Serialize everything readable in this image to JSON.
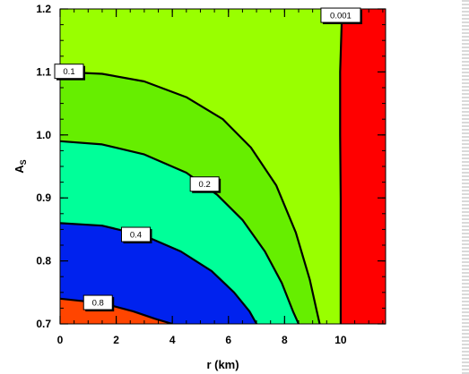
{
  "chart_data": {
    "type": "contour",
    "xlabel": "r (km)",
    "ylabel": {
      "main": "A",
      "sub": "S"
    },
    "xlim": [
      0,
      11.6
    ],
    "ylim": [
      0.7,
      1.2
    ],
    "xticks": [
      {
        "value": 0,
        "label": "0"
      },
      {
        "value": 2,
        "label": "2"
      },
      {
        "value": 4,
        "label": "4"
      },
      {
        "value": 6,
        "label": "6"
      },
      {
        "value": 8,
        "label": "8"
      },
      {
        "value": 10,
        "label": "10"
      }
    ],
    "yticks": [
      {
        "value": 0.7,
        "label": "0.7"
      },
      {
        "value": 0.8,
        "label": "0.8"
      },
      {
        "value": 0.9,
        "label": "0.9"
      },
      {
        "value": 1.0,
        "label": "1.0"
      },
      {
        "value": 1.1,
        "label": "1.1"
      },
      {
        "value": 1.2,
        "label": "1.2"
      }
    ],
    "fill_colors": {
      "above_0.8": "#ff4500",
      "0.4_to_0.8": "#0022ee",
      "0.2_to_0.4": "#00ff99",
      "0.1_to_0.2": "#66ee00",
      "0.001_to_0.1": "#99ff00",
      "below_0.001": "#ff0000"
    },
    "contours": [
      {
        "level": "0.8",
        "points": [
          [
            0,
            0.74
          ],
          [
            1.5,
            0.733
          ],
          [
            2.6,
            0.72
          ],
          [
            3.4,
            0.708
          ],
          [
            4.0,
            0.7
          ]
        ],
        "label_at": [
          1.35,
          0.734
        ]
      },
      {
        "level": "0.4",
        "points": [
          [
            0,
            0.86
          ],
          [
            1.5,
            0.856
          ],
          [
            3.0,
            0.84
          ],
          [
            4.3,
            0.815
          ],
          [
            5.4,
            0.784
          ],
          [
            6.2,
            0.75
          ],
          [
            6.75,
            0.72
          ],
          [
            7.0,
            0.7
          ]
        ],
        "label_at": [
          2.7,
          0.842
        ]
      },
      {
        "level": "0.2",
        "points": [
          [
            0,
            0.99
          ],
          [
            1.5,
            0.985
          ],
          [
            3.0,
            0.969
          ],
          [
            4.5,
            0.94
          ],
          [
            5.6,
            0.905
          ],
          [
            6.5,
            0.865
          ],
          [
            7.3,
            0.815
          ],
          [
            7.9,
            0.765
          ],
          [
            8.3,
            0.72
          ],
          [
            8.5,
            0.7
          ]
        ],
        "label_at": [
          5.15,
          0.922
        ]
      },
      {
        "level": "0.1",
        "points": [
          [
            0,
            1.1
          ],
          [
            1.5,
            1.097
          ],
          [
            3.0,
            1.085
          ],
          [
            4.5,
            1.06
          ],
          [
            5.8,
            1.025
          ],
          [
            6.8,
            0.98
          ],
          [
            7.7,
            0.92
          ],
          [
            8.4,
            0.845
          ],
          [
            8.9,
            0.77
          ],
          [
            9.15,
            0.72
          ],
          [
            9.25,
            0.7
          ]
        ],
        "label_at": [
          0.2,
          1.101
        ]
      },
      {
        "level": "0.001",
        "points": [
          [
            10.05,
            1.2
          ],
          [
            9.98,
            1.1
          ],
          [
            9.98,
            1.0
          ],
          [
            10.0,
            0.9
          ],
          [
            10.0,
            0.8
          ],
          [
            10.0,
            0.7
          ]
        ],
        "label_at": [
          10.0,
          1.19
        ]
      }
    ],
    "grid": false,
    "legend": "none"
  }
}
